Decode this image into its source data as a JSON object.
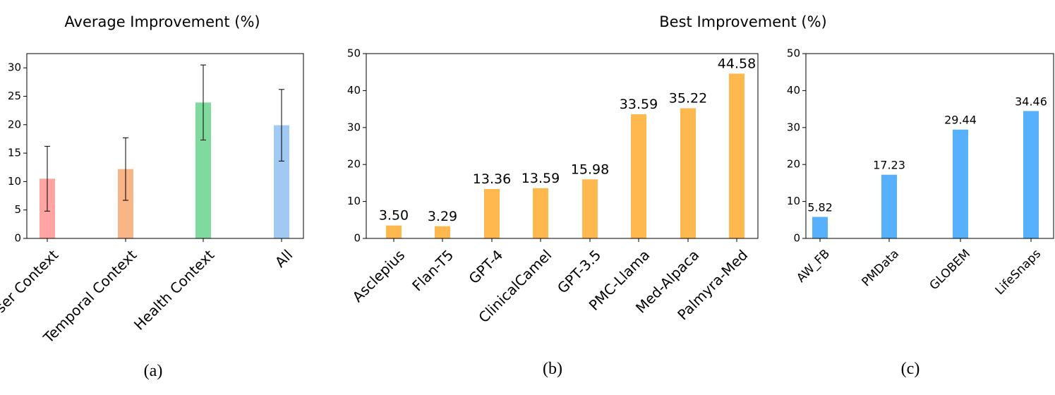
{
  "chart_data": [
    {
      "type": "bar",
      "panel": "(a)",
      "title": "Average Improvement (%)",
      "categories": [
        "User Context",
        "Temporal Context",
        "Health Context",
        "All"
      ],
      "values": [
        10.5,
        12.2,
        23.9,
        19.9
      ],
      "error": [
        5.7,
        5.5,
        6.6,
        6.3
      ],
      "colors": [
        "#ffa3a3",
        "#f9b585",
        "#7fdb9d",
        "#a1c9f1"
      ],
      "yticks": [
        "0",
        "5",
        "10",
        "15",
        "20",
        "25",
        "30"
      ],
      "ylim": [
        0,
        32.5
      ],
      "grid": false
    },
    {
      "type": "bar",
      "panel": "(b)",
      "title": "Best Improvement (%)",
      "categories": [
        "Asclepius",
        "Flan-T5",
        "GPT-4",
        "ClinicalCamel",
        "GPT-3.5",
        "PMC-Llama",
        "Med-Alpaca",
        "Palmyra-Med"
      ],
      "values": [
        3.5,
        3.29,
        13.36,
        13.59,
        15.98,
        33.59,
        35.22,
        44.58
      ],
      "value_labels": [
        "3.50",
        "3.29",
        "13.36",
        "13.59",
        "15.98",
        "33.59",
        "35.22",
        "44.58"
      ],
      "color": "#ffb84d",
      "yticks": [
        "0",
        "10",
        "20",
        "30",
        "40",
        "50"
      ],
      "ylim": [
        0,
        50
      ],
      "baseline": "dashed",
      "grid": false
    },
    {
      "type": "bar",
      "panel": "(c)",
      "title": "",
      "categories": [
        "AW_FB",
        "PMData",
        "GLOBEM",
        "LifeSnaps"
      ],
      "values": [
        5.82,
        17.23,
        29.44,
        34.46
      ],
      "value_labels": [
        "5.82",
        "17.23",
        "29.44",
        "34.46"
      ],
      "color": "#56b0fb",
      "yticks": [
        "0",
        "10",
        "20",
        "30",
        "40",
        "50"
      ],
      "ylim": [
        0,
        50
      ],
      "baseline": "dashed",
      "grid": false
    }
  ]
}
